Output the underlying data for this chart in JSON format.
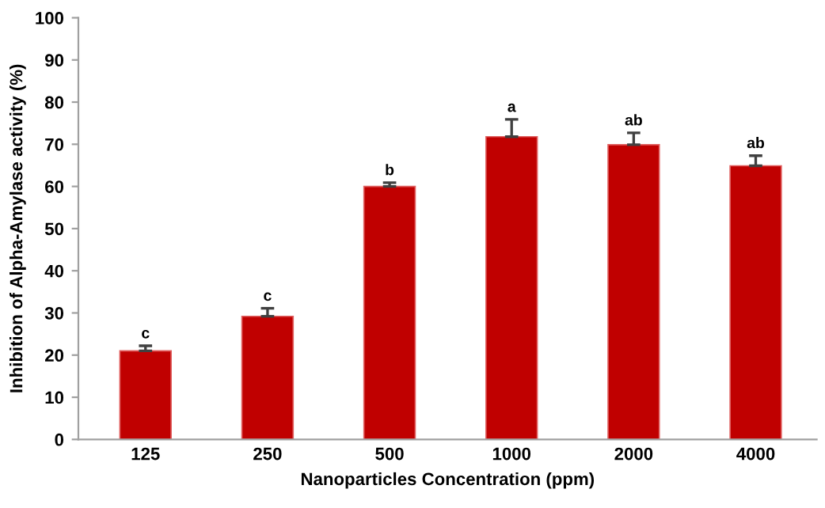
{
  "chart_data": {
    "type": "bar",
    "xlabel": "Nanoparticles Concentration (ppm)",
    "ylabel": "Inhibition of Alpha-Amylase activity (%)",
    "categories": [
      "125",
      "250",
      "500",
      "1000",
      "2000",
      "4000"
    ],
    "values": [
      21,
      29.2,
      60,
      71.8,
      69.9,
      64.9
    ],
    "errors": [
      [
        21,
        22.2
      ],
      [
        29.2,
        31.1
      ],
      [
        60,
        60.9
      ],
      [
        71.8,
        75.9
      ],
      [
        69.9,
        72.7
      ],
      [
        64.9,
        67.3
      ]
    ],
    "color": "#c00000",
    "ylim": [
      0,
      100
    ],
    "yticks": [
      0,
      10,
      20,
      30,
      40,
      50,
      60,
      70,
      80,
      90,
      100
    ],
    "grid": false,
    "legend": false,
    "annotations": [
      {
        "text": "c",
        "x": "125",
        "y": 22.2
      },
      {
        "text": "c",
        "x": "250",
        "y": 31.1
      },
      {
        "text": "b",
        "x": "500",
        "y": 60.9
      },
      {
        "text": "a",
        "x": "1000",
        "y": 75.9
      },
      {
        "text": "ab",
        "x": "2000",
        "y": 72.7
      },
      {
        "text": "ab",
        "x": "4000",
        "y": 67.3
      }
    ]
  }
}
